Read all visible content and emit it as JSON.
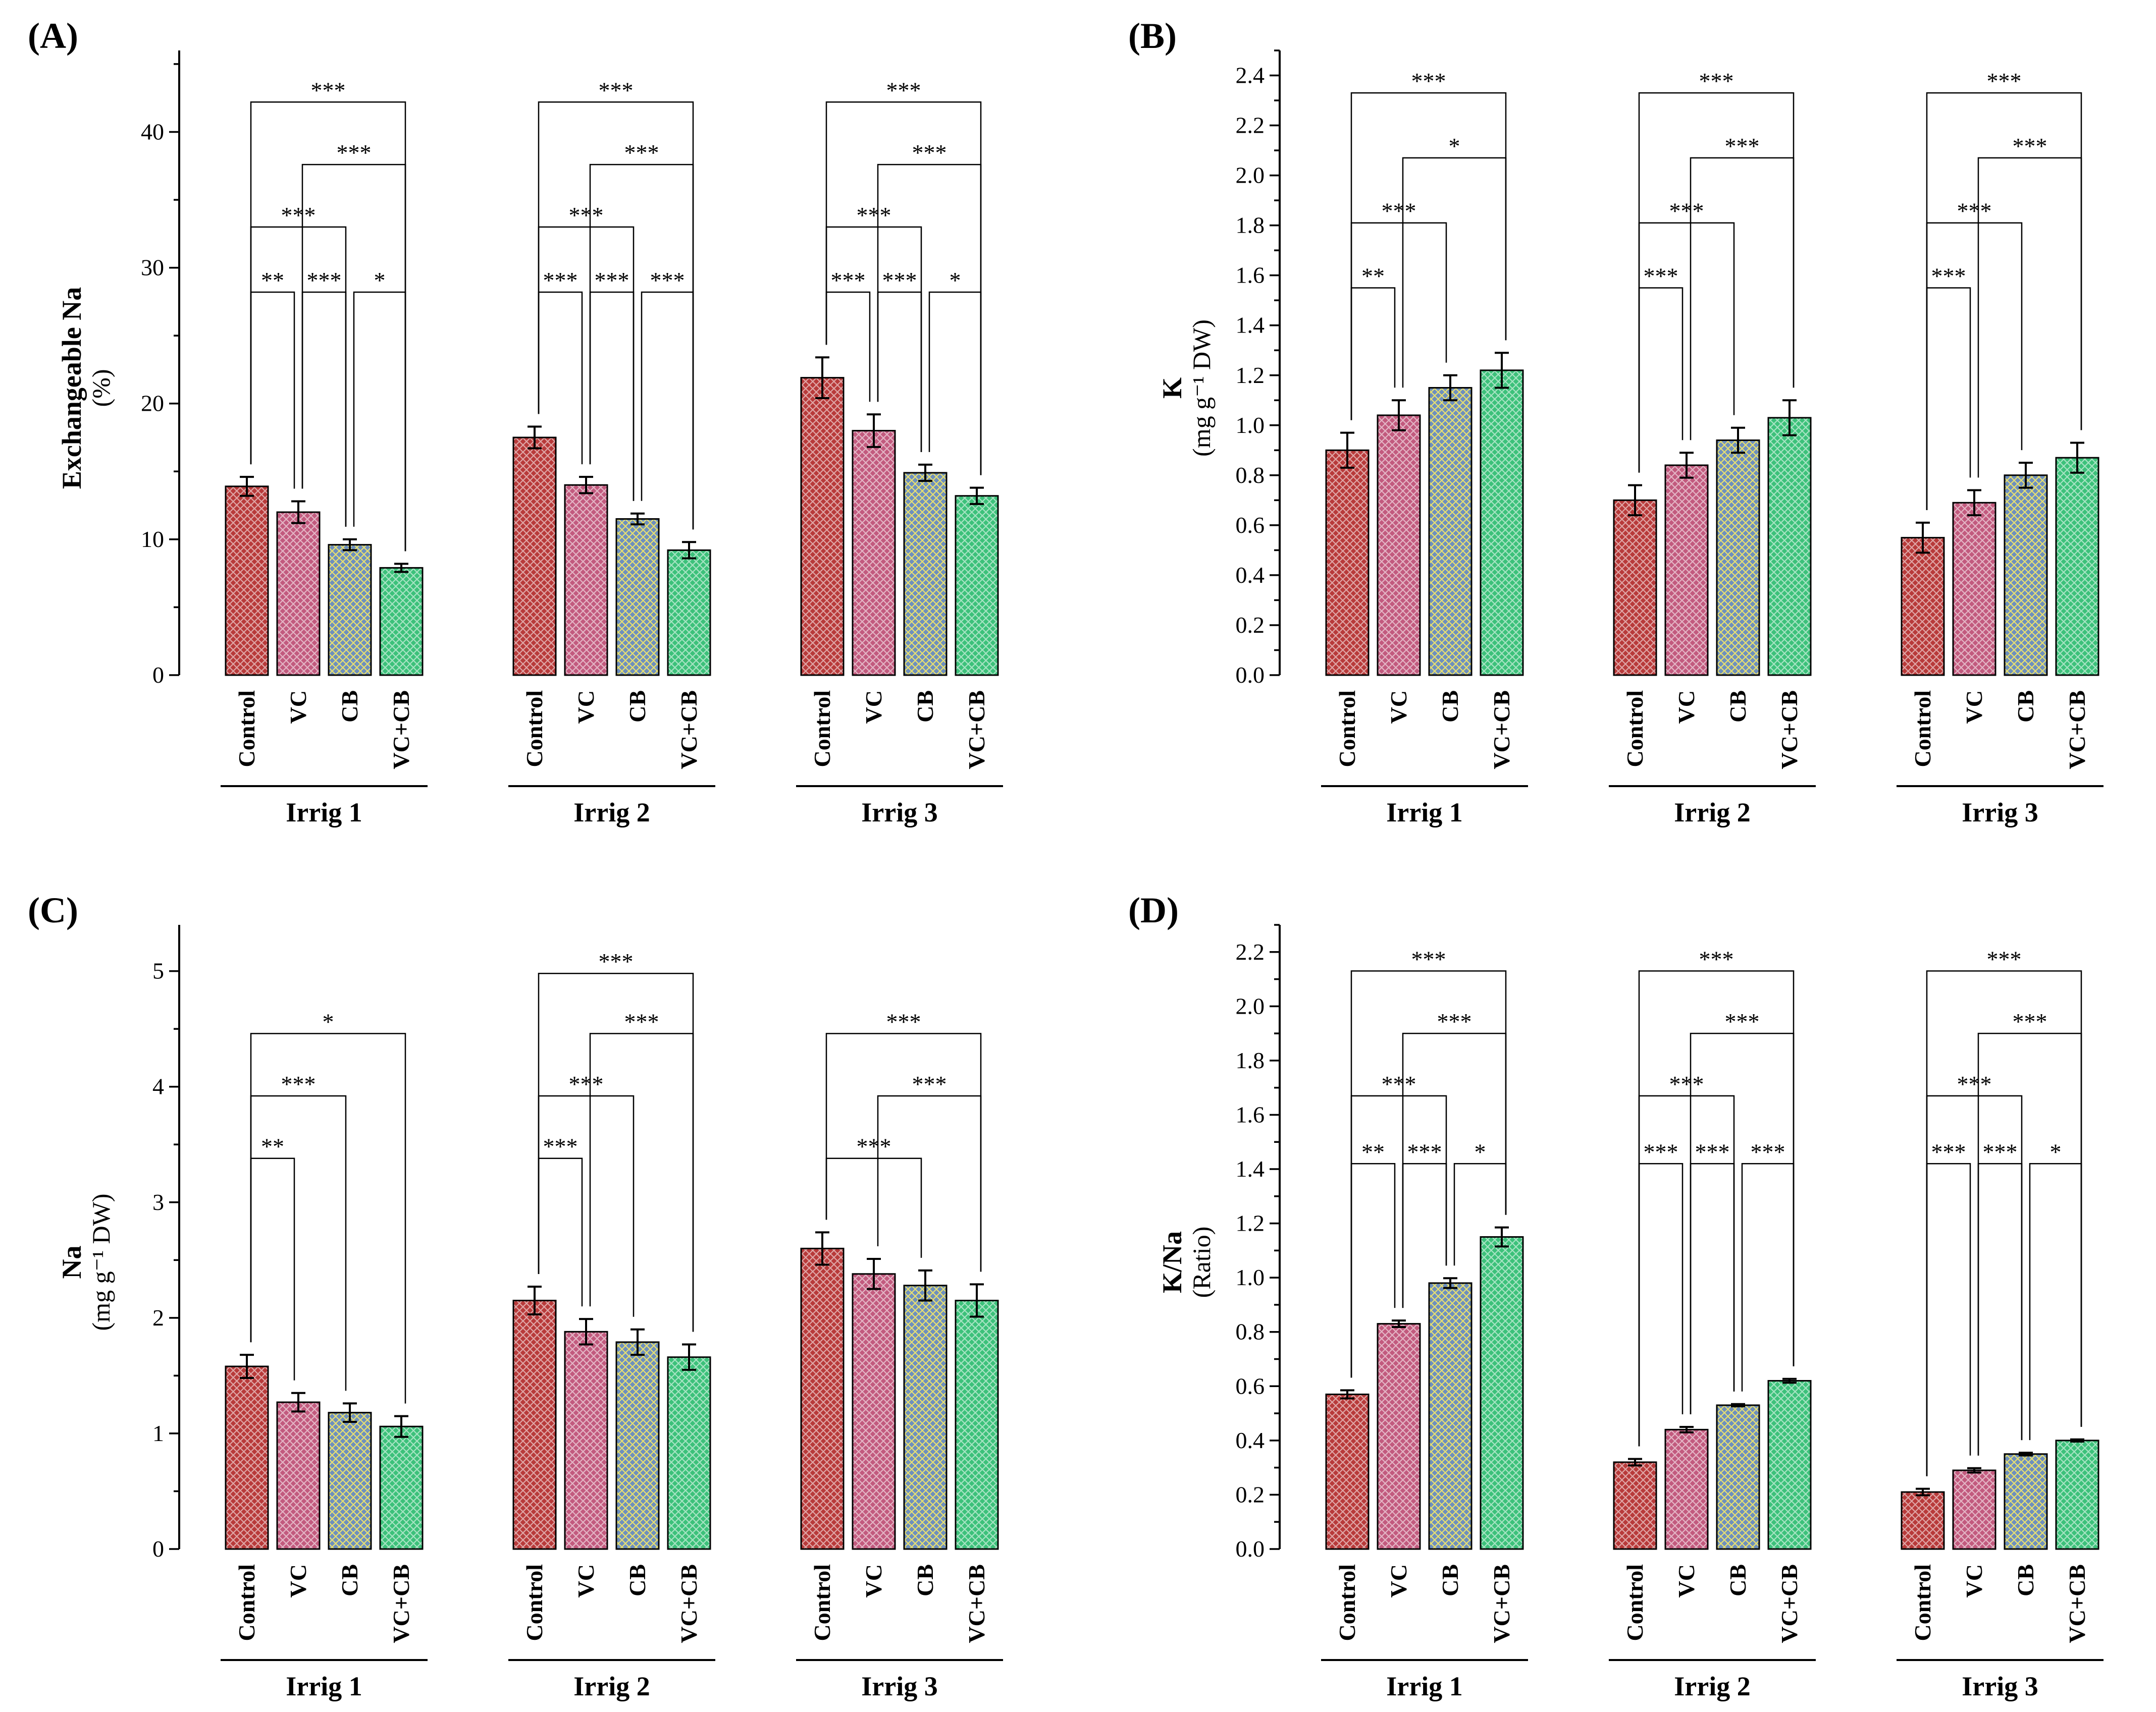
{
  "figure": {
    "groups": [
      "Irrig 1",
      "Irrig 2",
      "Irrig 3"
    ],
    "categories": [
      "Control",
      "VC",
      "CB",
      "VC+CB"
    ],
    "treatment_colors": {
      "Control": "#b83a3a",
      "VC": "#c25a7e",
      "CB": "#6d8fbf",
      "VC+CB": "#3cc17a"
    }
  },
  "chart_data": [
    {
      "id": "A",
      "type": "bar",
      "panel_label": "(A)",
      "ylabel": "Exchangeable Na",
      "ylabel_unit": "(%)",
      "ylim": [
        0,
        46
      ],
      "yticks": [
        0,
        10,
        20,
        30,
        40
      ],
      "tick_labels": [
        "0",
        "10",
        "20",
        "30",
        "40"
      ],
      "series": [
        {
          "group": "Irrig 1",
          "values": [
            13.9,
            12.0,
            9.6,
            7.9
          ],
          "errors": [
            0.7,
            0.8,
            0.4,
            0.3
          ]
        },
        {
          "group": "Irrig 2",
          "values": [
            17.5,
            14.0,
            11.5,
            9.2
          ],
          "errors": [
            0.8,
            0.6,
            0.4,
            0.6
          ]
        },
        {
          "group": "Irrig 3",
          "values": [
            21.9,
            18.0,
            14.9,
            13.2
          ],
          "errors": [
            1.5,
            1.2,
            0.6,
            0.6
          ]
        }
      ],
      "annotations": [
        {
          "group": 0,
          "a": 0,
          "b": 3,
          "level": 42.2,
          "label": "***"
        },
        {
          "group": 0,
          "a": 1,
          "b": 3,
          "level": 37.6,
          "label": "***"
        },
        {
          "group": 0,
          "a": 0,
          "b": 2,
          "level": 33.0,
          "label": "***"
        },
        {
          "group": 0,
          "a": 0,
          "b": 1,
          "level": 28.2,
          "label": "**"
        },
        {
          "group": 0,
          "a": 1,
          "b": 2,
          "level": 28.2,
          "label": "***"
        },
        {
          "group": 0,
          "a": 2,
          "b": 3,
          "level": 28.2,
          "label": "*"
        },
        {
          "group": 1,
          "a": 0,
          "b": 3,
          "level": 42.2,
          "label": "***"
        },
        {
          "group": 1,
          "a": 1,
          "b": 3,
          "level": 37.6,
          "label": "***"
        },
        {
          "group": 1,
          "a": 0,
          "b": 2,
          "level": 33.0,
          "label": "***"
        },
        {
          "group": 1,
          "a": 0,
          "b": 1,
          "level": 28.2,
          "label": "***"
        },
        {
          "group": 1,
          "a": 1,
          "b": 2,
          "level": 28.2,
          "label": "***"
        },
        {
          "group": 1,
          "a": 2,
          "b": 3,
          "level": 28.2,
          "label": "***"
        },
        {
          "group": 2,
          "a": 0,
          "b": 3,
          "level": 42.2,
          "label": "***"
        },
        {
          "group": 2,
          "a": 1,
          "b": 3,
          "level": 37.6,
          "label": "***"
        },
        {
          "group": 2,
          "a": 0,
          "b": 2,
          "level": 33.0,
          "label": "***"
        },
        {
          "group": 2,
          "a": 0,
          "b": 1,
          "level": 28.2,
          "label": "***"
        },
        {
          "group": 2,
          "a": 1,
          "b": 2,
          "level": 28.2,
          "label": "***"
        },
        {
          "group": 2,
          "a": 2,
          "b": 3,
          "level": 28.2,
          "label": "*"
        }
      ]
    },
    {
      "id": "B",
      "type": "bar",
      "panel_label": "(B)",
      "ylabel": "K",
      "ylabel_unit": "(mg g⁻¹ DW)",
      "ylim": [
        0,
        2.5
      ],
      "yticks": [
        0,
        0.2,
        0.4,
        0.6,
        0.8,
        1.0,
        1.2,
        1.4,
        1.6,
        1.8,
        2.0,
        2.2,
        2.4
      ],
      "tick_labels": [
        "0.0",
        "0.2",
        "0.4",
        "0.6",
        "0.8",
        "1.0",
        "1.2",
        "1.4",
        "1.6",
        "1.8",
        "2.0",
        "2.2",
        "2.4"
      ],
      "series": [
        {
          "group": "Irrig 1",
          "values": [
            0.9,
            1.04,
            1.15,
            1.22
          ],
          "errors": [
            0.07,
            0.06,
            0.05,
            0.07
          ]
        },
        {
          "group": "Irrig 2",
          "values": [
            0.7,
            0.84,
            0.94,
            1.03
          ],
          "errors": [
            0.06,
            0.05,
            0.05,
            0.07
          ]
        },
        {
          "group": "Irrig 3",
          "values": [
            0.55,
            0.69,
            0.8,
            0.87
          ],
          "errors": [
            0.06,
            0.05,
            0.05,
            0.06
          ]
        }
      ],
      "annotations": [
        {
          "group": 0,
          "a": 0,
          "b": 3,
          "level": 2.33,
          "label": "***"
        },
        {
          "group": 0,
          "a": 1,
          "b": 3,
          "level": 2.07,
          "label": "*"
        },
        {
          "group": 0,
          "a": 0,
          "b": 2,
          "level": 1.81,
          "label": "***"
        },
        {
          "group": 0,
          "a": 0,
          "b": 1,
          "level": 1.55,
          "label": "**"
        },
        {
          "group": 1,
          "a": 0,
          "b": 3,
          "level": 2.33,
          "label": "***"
        },
        {
          "group": 1,
          "a": 1,
          "b": 3,
          "level": 2.07,
          "label": "***"
        },
        {
          "group": 1,
          "a": 0,
          "b": 2,
          "level": 1.81,
          "label": "***"
        },
        {
          "group": 1,
          "a": 0,
          "b": 1,
          "level": 1.55,
          "label": "***"
        },
        {
          "group": 2,
          "a": 0,
          "b": 3,
          "level": 2.33,
          "label": "***"
        },
        {
          "group": 2,
          "a": 1,
          "b": 3,
          "level": 2.07,
          "label": "***"
        },
        {
          "group": 2,
          "a": 0,
          "b": 2,
          "level": 1.81,
          "label": "***"
        },
        {
          "group": 2,
          "a": 0,
          "b": 1,
          "level": 1.55,
          "label": "***"
        }
      ]
    },
    {
      "id": "C",
      "type": "bar",
      "panel_label": "(C)",
      "ylabel": "Na",
      "ylabel_unit": "(mg g⁻¹ DW)",
      "ylim": [
        0,
        5.4
      ],
      "yticks": [
        0,
        1,
        2,
        3,
        4,
        5
      ],
      "tick_labels": [
        "0",
        "1",
        "2",
        "3",
        "4",
        "5"
      ],
      "series": [
        {
          "group": "Irrig 1",
          "values": [
            1.58,
            1.27,
            1.18,
            1.06
          ],
          "errors": [
            0.1,
            0.08,
            0.08,
            0.09
          ]
        },
        {
          "group": "Irrig 2",
          "values": [
            2.15,
            1.88,
            1.79,
            1.66
          ],
          "errors": [
            0.12,
            0.11,
            0.11,
            0.11
          ]
        },
        {
          "group": "Irrig 3",
          "values": [
            2.6,
            2.38,
            2.28,
            2.15
          ],
          "errors": [
            0.14,
            0.13,
            0.13,
            0.14
          ]
        }
      ],
      "annotations": [
        {
          "group": 0,
          "a": 0,
          "b": 3,
          "level": 4.46,
          "label": "*"
        },
        {
          "group": 0,
          "a": 0,
          "b": 2,
          "level": 3.92,
          "label": "***"
        },
        {
          "group": 0,
          "a": 0,
          "b": 1,
          "level": 3.38,
          "label": "**"
        },
        {
          "group": 1,
          "a": 0,
          "b": 3,
          "level": 4.98,
          "label": "***"
        },
        {
          "group": 1,
          "a": 1,
          "b": 3,
          "level": 4.46,
          "label": "***"
        },
        {
          "group": 1,
          "a": 0,
          "b": 2,
          "level": 3.92,
          "label": "***"
        },
        {
          "group": 1,
          "a": 0,
          "b": 1,
          "level": 3.38,
          "label": "***"
        },
        {
          "group": 2,
          "a": 0,
          "b": 3,
          "level": 4.46,
          "label": "***"
        },
        {
          "group": 2,
          "a": 1,
          "b": 3,
          "level": 3.92,
          "label": "***"
        },
        {
          "group": 2,
          "a": 0,
          "b": 2,
          "level": 3.38,
          "label": "***"
        }
      ]
    },
    {
      "id": "D",
      "type": "bar",
      "panel_label": "(D)",
      "ylabel": "K/Na",
      "ylabel_unit": "(Ratio)",
      "ylim": [
        0,
        2.3
      ],
      "yticks": [
        0,
        0.2,
        0.4,
        0.6,
        0.8,
        1.0,
        1.2,
        1.4,
        1.6,
        1.8,
        2.0,
        2.2
      ],
      "tick_labels": [
        "0.0",
        "0.2",
        "0.4",
        "0.6",
        "0.8",
        "1.0",
        "1.2",
        "1.4",
        "1.6",
        "1.8",
        "2.0",
        "2.2"
      ],
      "series": [
        {
          "group": "Irrig 1",
          "values": [
            0.57,
            0.83,
            0.98,
            1.15
          ],
          "errors": [
            0.015,
            0.012,
            0.018,
            0.035
          ]
        },
        {
          "group": "Irrig 2",
          "values": [
            0.32,
            0.44,
            0.53,
            0.62
          ],
          "errors": [
            0.012,
            0.01,
            0.004,
            0.007
          ]
        },
        {
          "group": "Irrig 3",
          "values": [
            0.21,
            0.29,
            0.35,
            0.4
          ],
          "errors": [
            0.012,
            0.008,
            0.005,
            0.004
          ]
        }
      ],
      "annotations": [
        {
          "group": 0,
          "a": 0,
          "b": 3,
          "level": 2.13,
          "label": "***"
        },
        {
          "group": 0,
          "a": 1,
          "b": 3,
          "level": 1.9,
          "label": "***"
        },
        {
          "group": 0,
          "a": 0,
          "b": 2,
          "level": 1.67,
          "label": "***"
        },
        {
          "group": 0,
          "a": 0,
          "b": 1,
          "level": 1.42,
          "label": "**"
        },
        {
          "group": 0,
          "a": 1,
          "b": 2,
          "level": 1.42,
          "label": "***"
        },
        {
          "group": 0,
          "a": 2,
          "b": 3,
          "level": 1.42,
          "label": "*"
        },
        {
          "group": 1,
          "a": 0,
          "b": 3,
          "level": 2.13,
          "label": "***"
        },
        {
          "group": 1,
          "a": 1,
          "b": 3,
          "level": 1.9,
          "label": "***"
        },
        {
          "group": 1,
          "a": 0,
          "b": 2,
          "level": 1.67,
          "label": "***"
        },
        {
          "group": 1,
          "a": 0,
          "b": 1,
          "level": 1.42,
          "label": "***"
        },
        {
          "group": 1,
          "a": 1,
          "b": 2,
          "level": 1.42,
          "label": "***"
        },
        {
          "group": 1,
          "a": 2,
          "b": 3,
          "level": 1.42,
          "label": "***"
        },
        {
          "group": 2,
          "a": 0,
          "b": 3,
          "level": 2.13,
          "label": "***"
        },
        {
          "group": 2,
          "a": 1,
          "b": 3,
          "level": 1.9,
          "label": "***"
        },
        {
          "group": 2,
          "a": 0,
          "b": 2,
          "level": 1.67,
          "label": "***"
        },
        {
          "group": 2,
          "a": 0,
          "b": 1,
          "level": 1.42,
          "label": "***"
        },
        {
          "group": 2,
          "a": 1,
          "b": 2,
          "level": 1.42,
          "label": "***"
        },
        {
          "group": 2,
          "a": 2,
          "b": 3,
          "level": 1.42,
          "label": "*"
        }
      ]
    }
  ]
}
